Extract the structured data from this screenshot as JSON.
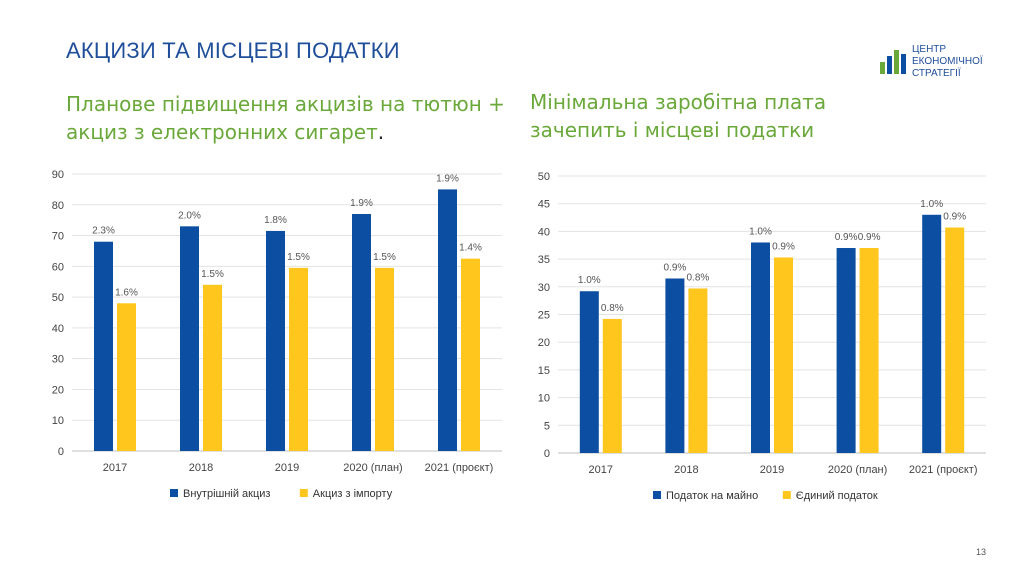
{
  "page": {
    "title": "АКЦИЗИ ТА МІСЦЕВІ ПОДАТКИ",
    "page_number": "13",
    "logo": {
      "lines": [
        "ЦЕНТР",
        "ЕКОНОМІЧНОЇ",
        "СТРАТЕГІЇ"
      ]
    },
    "subtitle_left": "Планове підвищення акцизів на тютюн +",
    "subtitle_left_line2": "акциз з електронних сигарет",
    "subtitle_left_tail": ".",
    "subtitle_right": "Мінімальна заробітна плата",
    "subtitle_right_line2": "зачепить і місцеві податки"
  },
  "colors": {
    "blue": "#0b4ea2",
    "yellow": "#ffc61e",
    "title": "#1f4e9a",
    "green": "#6aa83a"
  },
  "chart_data": [
    {
      "type": "bar",
      "categories": [
        "2017",
        "2018",
        "2019",
        "2020 (план)",
        "2021 (проєкт)"
      ],
      "ylim": [
        0,
        90
      ],
      "yticks": [
        0,
        10,
        20,
        30,
        40,
        50,
        60,
        70,
        80,
        90
      ],
      "grid": true,
      "legend": "bottom",
      "series": [
        {
          "name": "Внутрішній акциз",
          "color": "#0b4ea2",
          "values": [
            68,
            73,
            71.5,
            77,
            85
          ],
          "labels": [
            "2.3%",
            "2.0%",
            "1.8%",
            "1.9%",
            "1.9%"
          ]
        },
        {
          "name": "Акциз з імпорту",
          "color": "#ffc61e",
          "values": [
            48,
            54,
            59.5,
            59.5,
            62.5
          ],
          "labels": [
            "1.6%",
            "1.5%",
            "1.5%",
            "1.5%",
            "1.4%"
          ]
        }
      ]
    },
    {
      "type": "bar",
      "categories": [
        "2017",
        "2018",
        "2019",
        "2020 (план)",
        "2021 (проєкт)"
      ],
      "ylim": [
        0,
        50
      ],
      "yticks": [
        0,
        5,
        10,
        15,
        20,
        25,
        30,
        35,
        40,
        45,
        50
      ],
      "grid": true,
      "legend": "bottom",
      "series": [
        {
          "name": "Податок на майно",
          "color": "#0b4ea2",
          "values": [
            29.2,
            31.5,
            38,
            37,
            43
          ],
          "labels": [
            "1.0%",
            "0.9%",
            "1.0%",
            "0.9%",
            "1.0%"
          ]
        },
        {
          "name": "Єдиний податок",
          "color": "#ffc61e",
          "values": [
            24.2,
            29.7,
            35.3,
            37,
            40.7
          ],
          "labels": [
            "0.8%",
            "0.8%",
            "0.9%",
            "0.9%",
            "0.9%"
          ]
        }
      ]
    }
  ]
}
